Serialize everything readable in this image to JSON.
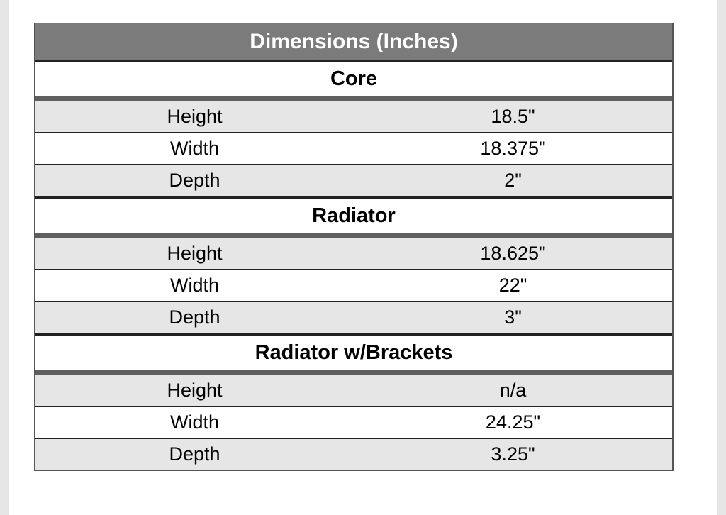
{
  "table": {
    "title": "Dimensions (Inches)",
    "sections": [
      {
        "title": "Core",
        "rows": [
          [
            "Height",
            "18.5\""
          ],
          [
            "Width",
            "18.375\""
          ],
          [
            "Depth",
            "2\""
          ]
        ]
      },
      {
        "title": "Radiator",
        "rows": [
          [
            "Height",
            "18.625\""
          ],
          [
            "Width",
            "22\""
          ],
          [
            "Depth",
            "3\""
          ]
        ]
      },
      {
        "title": "Radiator w/Brackets",
        "rows": [
          [
            "Height",
            "n/a"
          ],
          [
            "Width",
            "24.25\""
          ],
          [
            "Depth",
            "3.25\""
          ]
        ]
      }
    ]
  }
}
